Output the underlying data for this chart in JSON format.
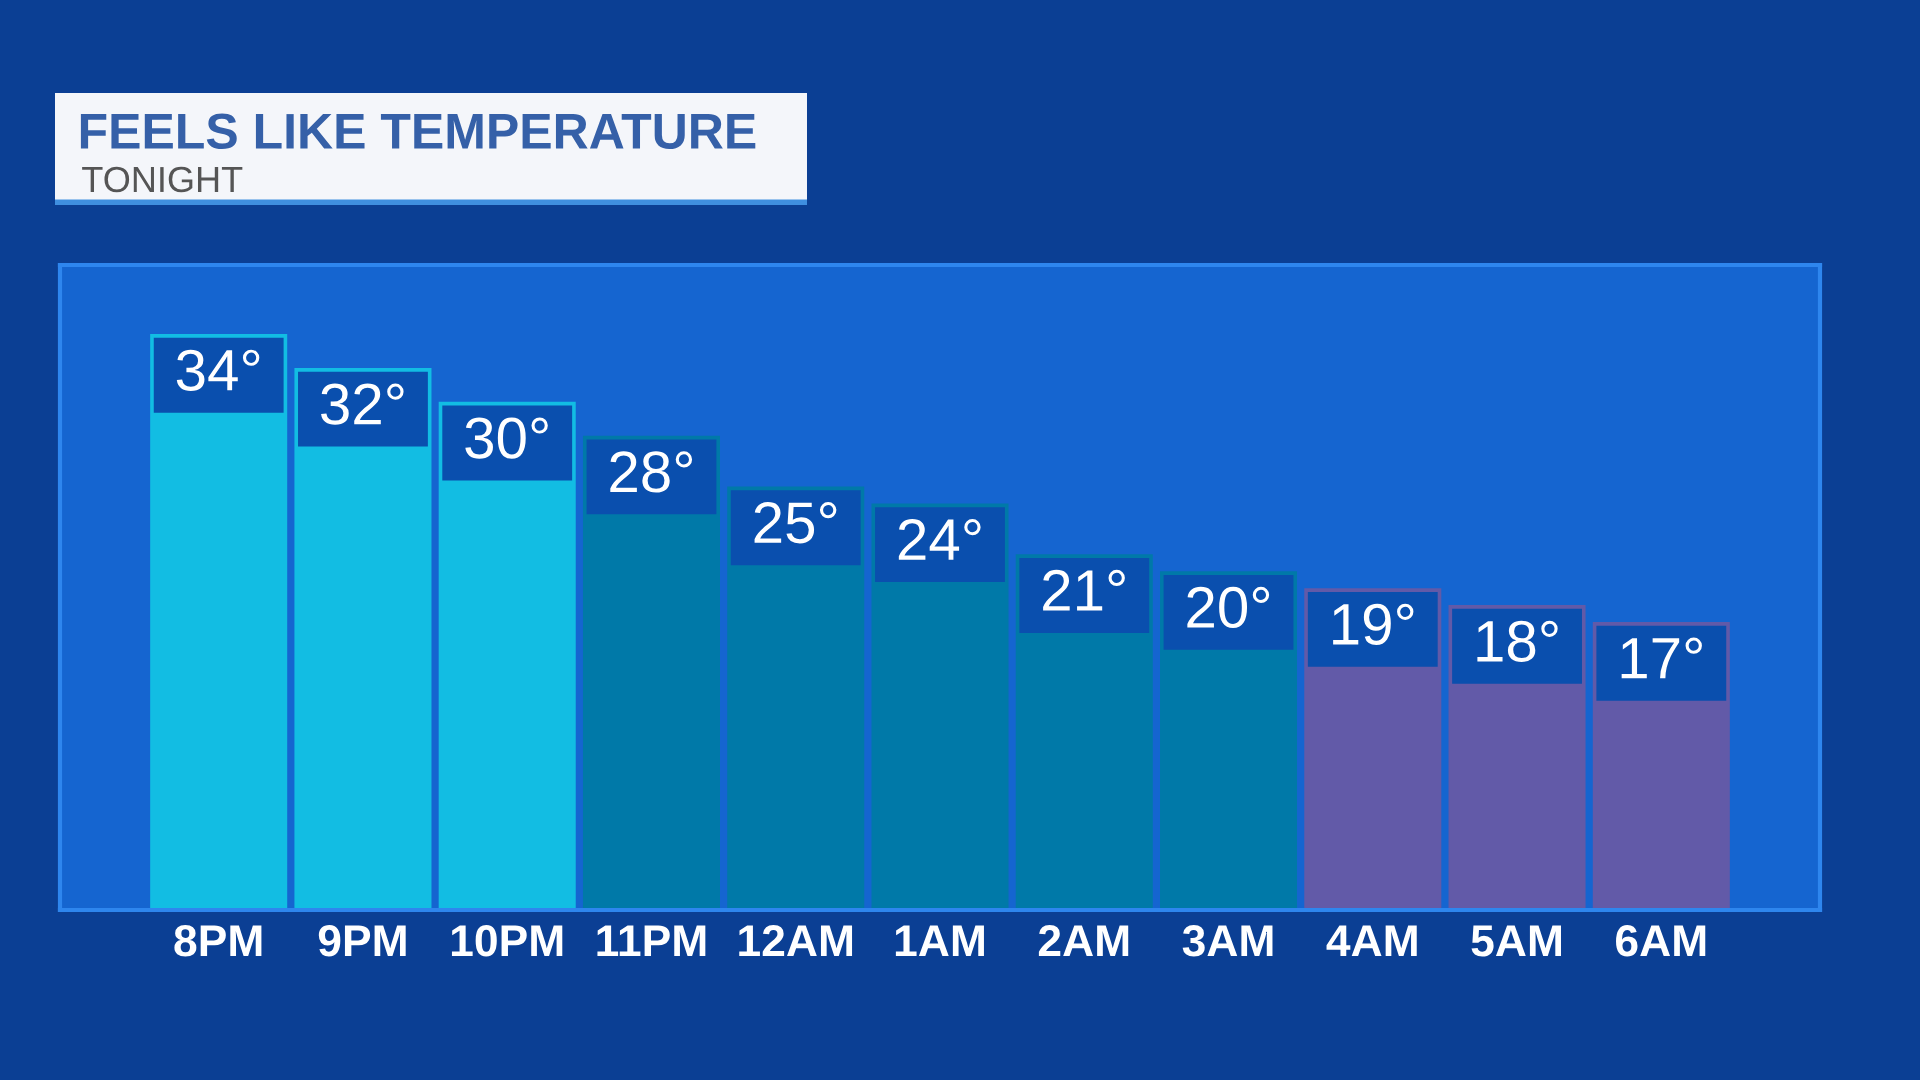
{
  "chart_data": {
    "type": "bar",
    "title": "FEELS LIKE TEMPERATURE",
    "subtitle": "TONIGHT",
    "categories": [
      "8PM",
      "9PM",
      "10PM",
      "11PM",
      "12AM",
      "1AM",
      "2AM",
      "3AM",
      "4AM",
      "5AM",
      "6AM"
    ],
    "values": [
      34,
      32,
      30,
      28,
      25,
      24,
      21,
      20,
      19,
      18,
      17
    ],
    "value_labels": [
      "34°",
      "32°",
      "30°",
      "28°",
      "25°",
      "24°",
      "21°",
      "20°",
      "19°",
      "18°",
      "17°"
    ],
    "colors": [
      "#12bde3",
      "#12bde3",
      "#12bde3",
      "#0079a8",
      "#0079a8",
      "#0079a8",
      "#0079a8",
      "#0079a8",
      "#625aa8",
      "#625aa8",
      "#625aa8"
    ],
    "grid": false,
    "legend": false
  }
}
